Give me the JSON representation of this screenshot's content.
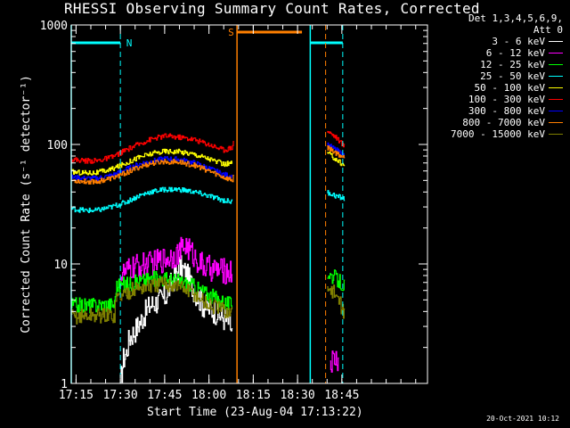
{
  "chart_data": {
    "type": "line",
    "title": "RHESSI Observing Summary Count Rates, Corrected",
    "xlabel": "Start Time (23-Aug-04 17:13:22)",
    "ylabel": "Corrected Count Rate (s⁻¹ detector⁻¹)",
    "yscale": "log",
    "ylim": [
      1,
      1000
    ],
    "xlim_min": [
      13.37,
      134
    ],
    "xticks": [
      {
        "label": "17:15",
        "min": 15
      },
      {
        "label": "17:30",
        "min": 30
      },
      {
        "label": "17:45",
        "min": 45
      },
      {
        "label": "18:00",
        "min": 60
      },
      {
        "label": "18:15",
        "min": 75
      },
      {
        "label": "18:30",
        "min": 90
      },
      {
        "label": "18:45",
        "min": 105
      }
    ],
    "yticks": [
      {
        "label": "1",
        "v": 1
      },
      {
        "label": "10",
        "v": 10
      },
      {
        "label": "100",
        "v": 100
      },
      {
        "label": "1000",
        "v": 1000
      }
    ],
    "detectors": "Det 1,3,4,5,6,9,",
    "attenuator": "Att 0",
    "flags": [
      {
        "label": "N",
        "color": "#00ffff",
        "y": 660,
        "segments": [
          [
            13.37,
            30
          ],
          [
            94.3,
            105.3
          ]
        ],
        "vlines": [
          13.37,
          94.3
        ],
        "dashed": [
          30,
          105.3
        ],
        "label_at": 32
      },
      {
        "label": "S",
        "color": "#ff7f00",
        "y": 780,
        "segments": [
          [
            69.5,
            91.5
          ]
        ],
        "vlines": [
          69.5
        ],
        "dashed": [
          99.5
        ],
        "label_at": 66.5
      }
    ],
    "series": [
      {
        "name": "3 - 6 keV",
        "color": "#ffffff",
        "values": [
          [
            30,
            1.0
          ],
          [
            31,
            1.6
          ],
          [
            32,
            1.8
          ],
          [
            33,
            2.4
          ],
          [
            35,
            2.8
          ],
          [
            40,
            4.5
          ],
          [
            45,
            5.2
          ],
          [
            48,
            7.5
          ],
          [
            50,
            9.5
          ],
          [
            52,
            8.5
          ],
          [
            55,
            6.0
          ],
          [
            58,
            4.5
          ],
          [
            62,
            4.0
          ],
          [
            67,
            3.2
          ],
          [
            68,
            2.5
          ]
        ]
      },
      {
        "name": "6 - 12 keV",
        "color": "#ff00ff",
        "values": [
          [
            30,
            8.0
          ],
          [
            35,
            9.5
          ],
          [
            40,
            10.0
          ],
          [
            45,
            11.0
          ],
          [
            50,
            12.5
          ],
          [
            52,
            14.5
          ],
          [
            55,
            11.5
          ],
          [
            58,
            9.5
          ],
          [
            62,
            9.0
          ],
          [
            68,
            8.5
          ],
          [
            101,
            1.5
          ],
          [
            103,
            1.6
          ],
          [
            104,
            1.5
          ]
        ]
      },
      {
        "name": "12 - 25 keV",
        "color": "#00ff00",
        "values": [
          [
            13.4,
            4.5
          ],
          [
            20,
            4.5
          ],
          [
            25,
            4.6
          ],
          [
            28,
            4.6
          ],
          [
            28.5,
            6.5
          ],
          [
            35,
            7.0
          ],
          [
            40,
            7.5
          ],
          [
            45,
            7.5
          ],
          [
            50,
            7.2
          ],
          [
            55,
            6.5
          ],
          [
            60,
            5.5
          ],
          [
            65,
            4.8
          ],
          [
            68,
            4.5
          ],
          [
            100,
            8.5
          ],
          [
            103,
            7.5
          ],
          [
            106,
            6.5
          ]
        ]
      },
      {
        "name": "25 - 50 keV",
        "color": "#00ffff",
        "values": [
          [
            13.4,
            29
          ],
          [
            18,
            28
          ],
          [
            22,
            28
          ],
          [
            27,
            30
          ],
          [
            32,
            33
          ],
          [
            36,
            37
          ],
          [
            40,
            40
          ],
          [
            45,
            42
          ],
          [
            50,
            42
          ],
          [
            55,
            40
          ],
          [
            60,
            37
          ],
          [
            65,
            34
          ],
          [
            68,
            33
          ],
          [
            100,
            40
          ],
          [
            103,
            37
          ],
          [
            106,
            35
          ]
        ]
      },
      {
        "name": "50 - 100 keV",
        "color": "#ffff00",
        "values": [
          [
            13.4,
            59
          ],
          [
            18,
            58
          ],
          [
            22,
            58
          ],
          [
            27,
            62
          ],
          [
            32,
            70
          ],
          [
            36,
            78
          ],
          [
            40,
            83
          ],
          [
            45,
            88
          ],
          [
            50,
            87
          ],
          [
            55,
            83
          ],
          [
            60,
            76
          ],
          [
            65,
            68
          ],
          [
            68,
            70
          ],
          [
            100,
            85
          ],
          [
            103,
            75
          ],
          [
            106,
            66
          ]
        ]
      },
      {
        "name": "100 - 300 keV",
        "color": "#ff0000",
        "values": [
          [
            13.4,
            75
          ],
          [
            18,
            73
          ],
          [
            22,
            73
          ],
          [
            27,
            78
          ],
          [
            32,
            90
          ],
          [
            36,
            100
          ],
          [
            40,
            110
          ],
          [
            45,
            118
          ],
          [
            50,
            115
          ],
          [
            55,
            110
          ],
          [
            60,
            100
          ],
          [
            65,
            90
          ],
          [
            68,
            95
          ],
          [
            68.5,
            125
          ],
          [
            100,
            130
          ],
          [
            103,
            115
          ],
          [
            106,
            95
          ]
        ]
      },
      {
        "name": "300 - 800 keV",
        "color": "#0000ff",
        "values": [
          [
            13.4,
            53
          ],
          [
            18,
            52
          ],
          [
            22,
            52
          ],
          [
            27,
            55
          ],
          [
            32,
            62
          ],
          [
            36,
            68
          ],
          [
            40,
            72
          ],
          [
            45,
            76
          ],
          [
            50,
            75
          ],
          [
            55,
            70
          ],
          [
            60,
            63
          ],
          [
            65,
            56
          ],
          [
            68,
            54
          ],
          [
            100,
            100
          ],
          [
            103,
            90
          ],
          [
            106,
            80
          ]
        ]
      },
      {
        "name": "800 - 7000 keV",
        "color": "#ff7f00",
        "values": [
          [
            13.4,
            50
          ],
          [
            18,
            49
          ],
          [
            22,
            49
          ],
          [
            27,
            52
          ],
          [
            32,
            58
          ],
          [
            36,
            64
          ],
          [
            40,
            69
          ],
          [
            45,
            72
          ],
          [
            50,
            71
          ],
          [
            55,
            67
          ],
          [
            60,
            60
          ],
          [
            65,
            53
          ],
          [
            68,
            50
          ],
          [
            68.5,
            60
          ],
          [
            100,
            95
          ],
          [
            103,
            85
          ],
          [
            106,
            77
          ]
        ]
      },
      {
        "name": "7000 - 15000 keV",
        "color": "#808000",
        "values": [
          [
            13.4,
            3.6
          ],
          [
            20,
            3.7
          ],
          [
            25,
            3.7
          ],
          [
            28,
            3.7
          ],
          [
            28.5,
            5.2
          ],
          [
            35,
            6.2
          ],
          [
            40,
            6.5
          ],
          [
            45,
            6.8
          ],
          [
            50,
            6.5
          ],
          [
            55,
            5.6
          ],
          [
            60,
            4.5
          ],
          [
            65,
            4.1
          ],
          [
            68,
            3.8
          ],
          [
            100,
            6.5
          ],
          [
            103,
            5.5
          ],
          [
            106,
            3.8
          ]
        ]
      }
    ]
  },
  "timestamp": "20-Oct-2021 10:12"
}
